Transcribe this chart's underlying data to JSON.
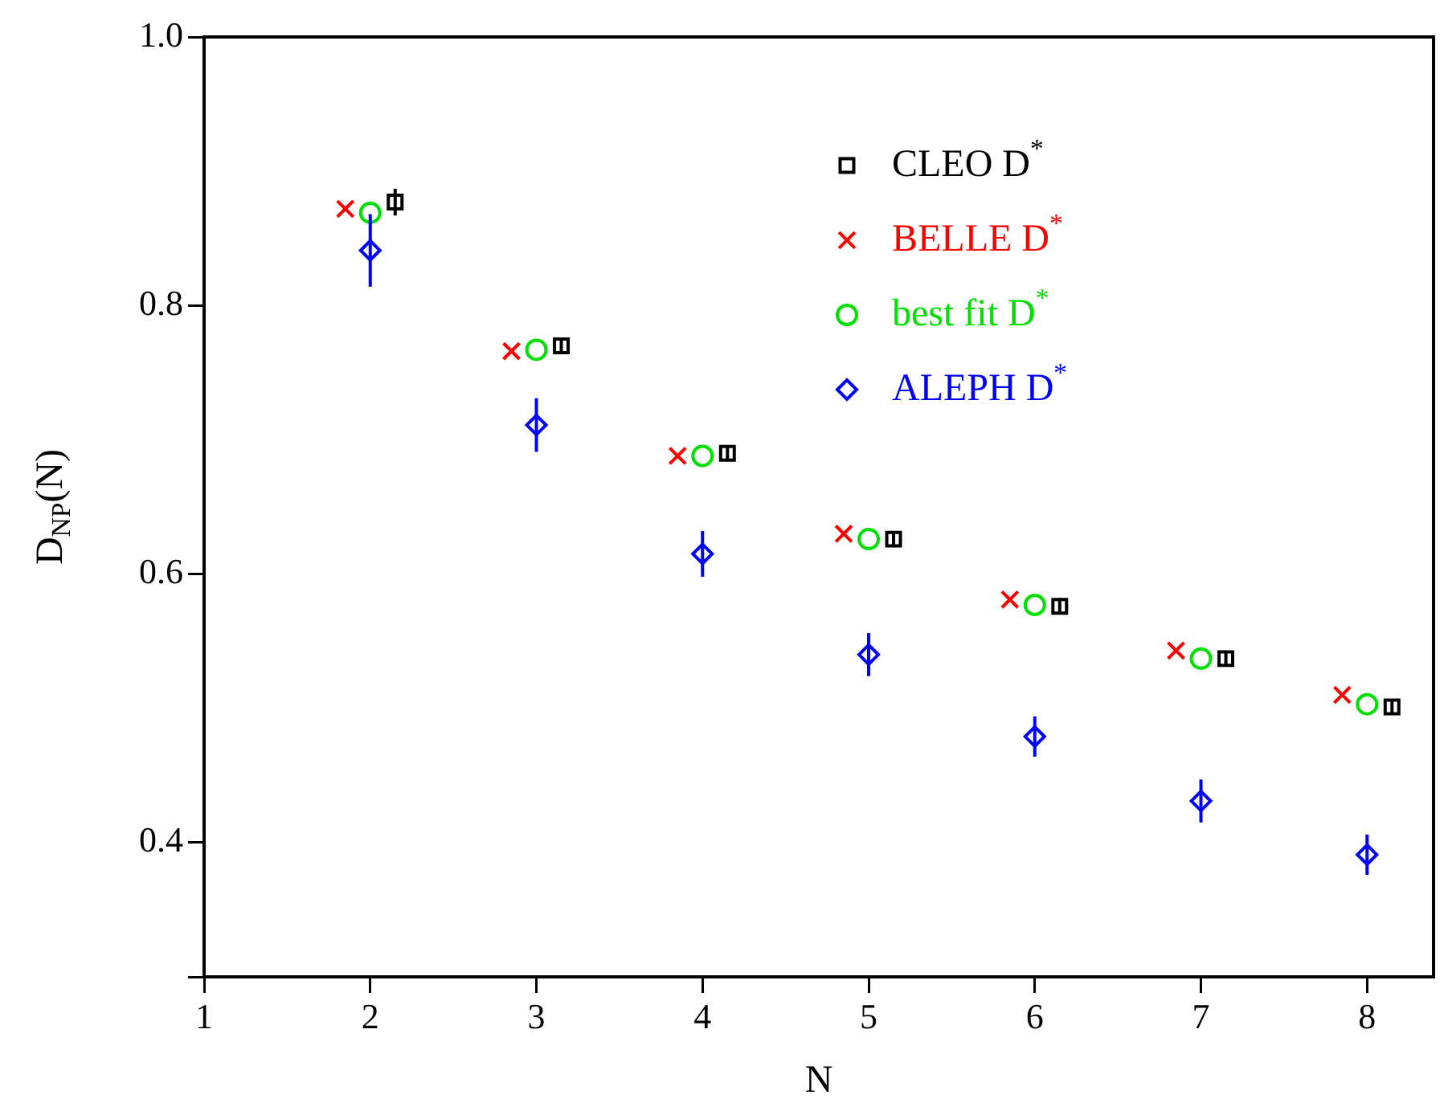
{
  "chart_data": {
    "type": "scatter",
    "xlabel": "N",
    "ylabel": "D$_{NP}$(N)",
    "xlim": [
      1,
      8.4
    ],
    "ylim": [
      0.3,
      1.0
    ],
    "xticks": [
      1,
      2,
      3,
      4,
      5,
      6,
      7,
      8
    ],
    "yticks": [
      {
        "value": 0.3,
        "label": null
      },
      0.4,
      0.6,
      0.8,
      {
        "value": 1.0,
        "label": "1.0"
      }
    ],
    "grid": false,
    "legend": "top right",
    "series": [
      {
        "name": "CLEO D$^{*}$",
        "color": "#000000",
        "marker": "square",
        "x": [
          2.15,
          3.15,
          4.15,
          5.15,
          6.15,
          7.15,
          8.15
        ],
        "values": [
          0.877,
          0.77,
          0.69,
          0.626,
          0.576,
          0.537,
          0.501
        ],
        "errors": [
          0.01,
          0.006,
          0.006,
          0.006,
          0.006,
          0.006,
          0.006
        ]
      },
      {
        "name": "BELLE D$^{*}$",
        "color": "#ff0000",
        "marker": "cross",
        "x": [
          1.85,
          2.85,
          3.85,
          4.85,
          5.85,
          6.85,
          7.85
        ],
        "values": [
          0.872,
          0.766,
          0.688,
          0.63,
          0.581,
          0.543,
          0.51
        ]
      },
      {
        "name": "best fit D$^{*}$",
        "color": "#00e000",
        "marker": "circle",
        "x": [
          2,
          3,
          4,
          5,
          6,
          7,
          8
        ],
        "values": [
          0.869,
          0.767,
          0.688,
          0.626,
          0.577,
          0.537,
          0.503
        ]
      },
      {
        "name": "ALEPH D$^{*}$",
        "color": "#0000ff",
        "marker": "diamond",
        "x": [
          2,
          3,
          4,
          5,
          6,
          7,
          8
        ],
        "values": [
          0.841,
          0.711,
          0.615,
          0.54,
          0.479,
          0.431,
          0.391
        ],
        "errors": [
          0.027,
          0.02,
          0.017,
          0.016,
          0.015,
          0.016,
          0.015
        ]
      }
    ]
  }
}
